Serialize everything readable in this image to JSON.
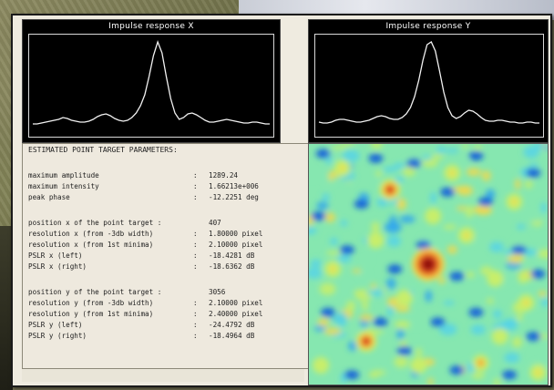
{
  "plots": {
    "x": {
      "title": "Impulse response X",
      "profile": [
        0.1,
        0.1,
        0.11,
        0.12,
        0.13,
        0.14,
        0.15,
        0.17,
        0.16,
        0.14,
        0.13,
        0.12,
        0.12,
        0.13,
        0.15,
        0.18,
        0.2,
        0.21,
        0.19,
        0.16,
        0.14,
        0.13,
        0.14,
        0.17,
        0.22,
        0.3,
        0.42,
        0.62,
        0.85,
        1.0,
        0.88,
        0.62,
        0.38,
        0.22,
        0.15,
        0.17,
        0.21,
        0.22,
        0.2,
        0.17,
        0.14,
        0.12,
        0.12,
        0.13,
        0.14,
        0.15,
        0.14,
        0.13,
        0.12,
        0.11,
        0.11,
        0.12,
        0.12,
        0.11,
        0.1,
        0.1
      ]
    },
    "y": {
      "title": "Impulse response Y",
      "profile": [
        0.12,
        0.11,
        0.11,
        0.12,
        0.14,
        0.15,
        0.15,
        0.14,
        0.13,
        0.12,
        0.12,
        0.13,
        0.14,
        0.16,
        0.18,
        0.19,
        0.18,
        0.16,
        0.15,
        0.15,
        0.17,
        0.21,
        0.28,
        0.4,
        0.58,
        0.8,
        0.97,
        1.0,
        0.9,
        0.68,
        0.45,
        0.28,
        0.19,
        0.16,
        0.18,
        0.22,
        0.25,
        0.24,
        0.21,
        0.17,
        0.14,
        0.13,
        0.13,
        0.14,
        0.14,
        0.13,
        0.12,
        0.12,
        0.11,
        0.11,
        0.12,
        0.12,
        0.11,
        0.11
      ]
    }
  },
  "parameters": {
    "heading": "ESTIMATED POINT TARGET PARAMETERS:",
    "rows": [
      {
        "label": "maximum amplitude",
        "value": "1289.24"
      },
      {
        "label": "maximum intensity",
        "value": "1.66213e+006"
      },
      {
        "label": "peak phase",
        "value": "-12.2251 deg"
      },
      {
        "label": "position x of the point target :",
        "value": "407",
        "nocolon": true
      },
      {
        "label": "resolution x (from -3db width)",
        "value": "1.80000 pixel"
      },
      {
        "label": "resolution x (from 1st minima)",
        "value": "2.10000 pixel"
      },
      {
        "label": "PSLR x (left)",
        "value": "-18.4281 dB"
      },
      {
        "label": "PSLR x (right)",
        "value": "-18.6362 dB"
      },
      {
        "label": "position y of the point target :",
        "value": "3056",
        "nocolon": true
      },
      {
        "label": "resolution y (from -3db width)",
        "value": "2.10000 pixel"
      },
      {
        "label": "resolution y (from 1st minima)",
        "value": "2.40000 pixel"
      },
      {
        "label": "PSLR y (left)",
        "value": "-24.4792 dB"
      },
      {
        "label": "PSLR y (right)",
        "value": "-18.4964 dB"
      }
    ],
    "separator": ":"
  },
  "heatmap": {
    "palette": [
      "#1565d8",
      "#2ea3ee",
      "#55d3e8",
      "#86e7b0",
      "#c8ee6a",
      "#f2d84a",
      "#f08a2e",
      "#d2321c",
      "#8a0d08"
    ],
    "background_level": 3,
    "spots": [
      {
        "u": 0.5,
        "v": 0.5,
        "level": 8
      },
      {
        "u": 0.34,
        "v": 0.19,
        "level": 7
      },
      {
        "u": 0.24,
        "v": 0.82,
        "level": 7
      },
      {
        "u": 0.72,
        "v": 0.91,
        "level": 6
      },
      {
        "u": 0.86,
        "v": 0.24,
        "level": 5
      },
      {
        "u": 0.14,
        "v": 0.1,
        "level": 5
      },
      {
        "u": 0.91,
        "v": 0.66,
        "level": 5
      },
      {
        "u": 0.6,
        "v": 0.12,
        "level": 5
      },
      {
        "u": 0.1,
        "v": 0.52,
        "level": 5
      },
      {
        "u": 0.4,
        "v": 0.64,
        "level": 4
      },
      {
        "u": 0.66,
        "v": 0.38,
        "level": 5
      },
      {
        "u": 0.8,
        "v": 0.8,
        "level": 4
      },
      {
        "u": 0.05,
        "v": 0.92,
        "level": 4
      },
      {
        "u": 0.96,
        "v": 0.95,
        "level": 5
      },
      {
        "u": 0.46,
        "v": 0.92,
        "level": 4
      },
      {
        "u": 0.28,
        "v": 0.4,
        "level": 4
      },
      {
        "u": 0.78,
        "v": 0.56,
        "level": 4
      },
      {
        "u": 0.52,
        "v": 0.3,
        "level": 4
      }
    ],
    "cold_spots": [
      {
        "u": 0.06,
        "v": 0.04
      },
      {
        "u": 0.22,
        "v": 0.25
      },
      {
        "u": 0.44,
        "v": 0.08
      },
      {
        "u": 0.7,
        "v": 0.05
      },
      {
        "u": 0.94,
        "v": 0.12
      },
      {
        "u": 0.58,
        "v": 0.2
      },
      {
        "u": 0.16,
        "v": 0.44
      },
      {
        "u": 0.36,
        "v": 0.52
      },
      {
        "u": 0.62,
        "v": 0.55
      },
      {
        "u": 0.88,
        "v": 0.44
      },
      {
        "u": 0.08,
        "v": 0.7
      },
      {
        "u": 0.3,
        "v": 0.74
      },
      {
        "u": 0.54,
        "v": 0.74
      },
      {
        "u": 0.7,
        "v": 0.7
      },
      {
        "u": 0.94,
        "v": 0.8
      },
      {
        "u": 0.18,
        "v": 0.96
      },
      {
        "u": 0.4,
        "v": 0.86
      },
      {
        "u": 0.62,
        "v": 0.94
      },
      {
        "u": 0.84,
        "v": 0.96
      },
      {
        "u": 0.74,
        "v": 0.24
      },
      {
        "u": 0.28,
        "v": 0.06
      },
      {
        "u": 0.48,
        "v": 0.42
      },
      {
        "u": 0.96,
        "v": 0.54
      },
      {
        "u": 0.04,
        "v": 0.3
      }
    ]
  }
}
